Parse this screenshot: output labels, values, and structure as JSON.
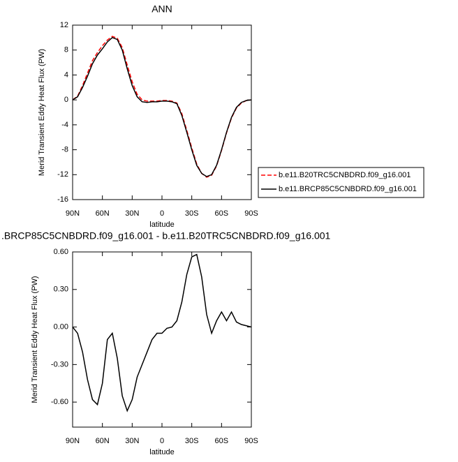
{
  "chart_data": [
    {
      "type": "line",
      "title": "ANN",
      "xlabel": "latitude",
      "ylabel": "Merid Transient Eddy Heat Flux (PW)",
      "x": [
        90,
        85,
        80,
        75,
        70,
        65,
        60,
        55,
        50,
        45,
        40,
        35,
        30,
        25,
        20,
        15,
        10,
        5,
        0,
        -5,
        -10,
        -15,
        -20,
        -25,
        -30,
        -35,
        -40,
        -45,
        -50,
        -55,
        -60,
        -65,
        -70,
        -75,
        -80,
        -85,
        -90
      ],
      "series": [
        {
          "name": "b.e11.B20TRC5CNBDRD.f09_g16.001",
          "color": "#ff0000",
          "line_style": "dashed",
          "values": [
            0,
            0.6,
            2.3,
            4.3,
            6.3,
            7.6,
            8.7,
            9.6,
            10.2,
            9.9,
            8.4,
            5.6,
            2.9,
            0.9,
            0,
            -0.2,
            -0.2,
            -0.2,
            -0.1,
            -0.1,
            -0.2,
            -0.5,
            -2.2,
            -4.9,
            -7.7,
            -10.3,
            -11.8,
            -12.4,
            -12.1,
            -10.6,
            -8.1,
            -5.3,
            -2.9,
            -1.3,
            -0.5,
            -0.1,
            0
          ]
        },
        {
          "name": "b.e11.BRCP85C5CNBDRD.f09_g16.001",
          "color": "#000000",
          "line_style": "solid",
          "values": [
            0,
            0.5,
            2,
            3.8,
            5.8,
            7.2,
            8.2,
            9.3,
            10,
            9.7,
            8,
            5,
            2.3,
            0.5,
            -0.3,
            -0.4,
            -0.3,
            -0.3,
            -0.2,
            -0.2,
            -0.3,
            -0.6,
            -2.5,
            -5.2,
            -8,
            -10.5,
            -11.8,
            -12.3,
            -12,
            -10.5,
            -8,
            -5.2,
            -2.8,
            -1.2,
            -0.4,
            -0.1,
            0
          ]
        }
      ],
      "xlim": [
        90,
        -90
      ],
      "xticks": [
        {
          "value": 90,
          "label": "90N"
        },
        {
          "value": 60,
          "label": "60N"
        },
        {
          "value": 30,
          "label": "30N"
        },
        0,
        {
          "value": -30,
          "label": "30S"
        },
        {
          "value": -60,
          "label": "60S"
        },
        {
          "value": -90,
          "label": "90S"
        }
      ],
      "ylim": [
        -16,
        12
      ],
      "yticks": [
        12,
        8,
        4,
        0,
        -4,
        -8,
        -12,
        -16
      ],
      "legend": "right"
    },
    {
      "type": "line",
      "title": ".BRCP85C5CNBDRD.f09_g16.001 - b.e11.B20TRC5CNBDRD.f09_g16.001",
      "xlabel": "latitude",
      "ylabel": "Merid Transient Eddy Heat Flux (PW)",
      "x": [
        90,
        85,
        80,
        75,
        70,
        65,
        60,
        55,
        50,
        45,
        40,
        35,
        30,
        25,
        20,
        15,
        10,
        5,
        0,
        -5,
        -10,
        -15,
        -20,
        -25,
        -30,
        -35,
        -40,
        -45,
        -50,
        -55,
        -60,
        -65,
        -70,
        -75,
        -80,
        -85,
        -90
      ],
      "series": [
        {
          "color": "#000000",
          "line_style": "solid",
          "values": [
            0,
            -0.05,
            -0.2,
            -0.42,
            -0.58,
            -0.62,
            -0.45,
            -0.1,
            -0.05,
            -0.25,
            -0.55,
            -0.67,
            -0.58,
            -0.4,
            -0.3,
            -0.2,
            -0.1,
            -0.05,
            -0.05,
            -0.01,
            0,
            0.05,
            0.2,
            0.42,
            0.56,
            0.58,
            0.4,
            0.1,
            -0.05,
            0.05,
            0.12,
            0.05,
            0.12,
            0.04,
            0.02,
            0.01,
            0
          ]
        }
      ],
      "xlim": [
        90,
        -90
      ],
      "xticks": [
        {
          "value": 90,
          "label": "90N"
        },
        {
          "value": 60,
          "label": "60N"
        },
        {
          "value": 30,
          "label": "30N"
        },
        0,
        {
          "value": -30,
          "label": "30S"
        },
        {
          "value": -60,
          "label": "60S"
        },
        {
          "value": -90,
          "label": "90S"
        }
      ],
      "ylim": [
        -0.8,
        0.6
      ],
      "yticks": [
        {
          "value": 0.6,
          "label": "0.60"
        },
        {
          "value": 0.3,
          "label": "0.30"
        },
        {
          "value": 0,
          "label": "0.00"
        },
        {
          "value": -0.3,
          "label": "-0.30"
        },
        {
          "value": -0.6,
          "label": "-0.60"
        }
      ]
    }
  ]
}
